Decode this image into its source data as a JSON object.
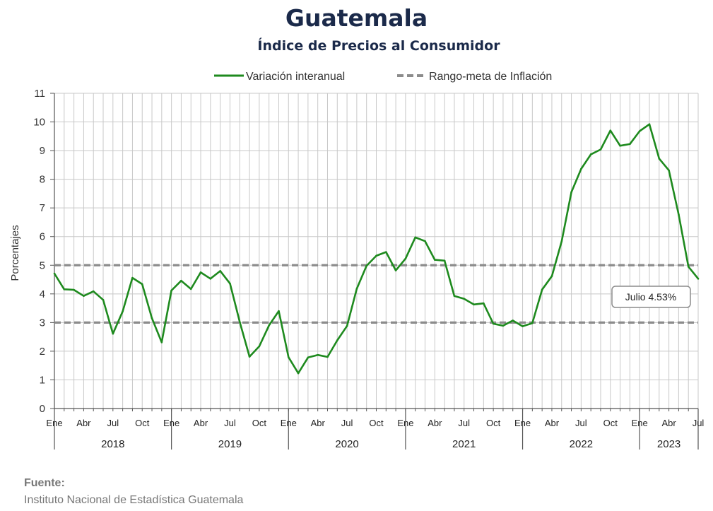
{
  "header": {
    "title": "Guatemala",
    "subtitle": "Índice de Precios al Consumidor"
  },
  "source": {
    "label": "Fuente:",
    "text": "Instituto Nacional de Estadística Guatemala"
  },
  "colors": {
    "series": "#1e8a1e",
    "target": "#8c8c8c",
    "grid": "#c8c8c8",
    "axis": "#555555"
  },
  "chart_data": {
    "type": "line",
    "title": "Guatemala",
    "subtitle": "Índice de Precios al Consumidor",
    "ylabel": "Porcentajes",
    "xlabel": "",
    "ylim": [
      0,
      11
    ],
    "yticks": [
      0,
      1,
      2,
      3,
      4,
      5,
      6,
      7,
      8,
      9,
      10,
      11
    ],
    "grid": true,
    "legend_position": "top",
    "x_start": "2018-01",
    "x_end": "2023-07",
    "month_tick_labels": [
      "Ene",
      "Abr",
      "Jul",
      "Oct"
    ],
    "years": [
      "2018",
      "2019",
      "2020",
      "2021",
      "2022",
      "2023"
    ],
    "series": [
      {
        "name": "Variación interanual",
        "style": "solid",
        "values": [
          4.71,
          4.16,
          4.14,
          3.93,
          4.09,
          3.79,
          2.61,
          3.39,
          4.56,
          4.34,
          3.15,
          2.31,
          4.12,
          4.46,
          4.17,
          4.75,
          4.53,
          4.8,
          4.36,
          3.02,
          1.81,
          2.17,
          2.9,
          3.4,
          1.79,
          1.23,
          1.78,
          1.87,
          1.8,
          2.38,
          2.88,
          4.18,
          4.98,
          5.33,
          5.46,
          4.82,
          5.23,
          5.97,
          5.84,
          5.19,
          5.16,
          3.93,
          3.83,
          3.63,
          3.67,
          2.96,
          2.89,
          3.07,
          2.87,
          2.98,
          4.15,
          4.62,
          5.83,
          7.55,
          8.36,
          8.87,
          9.04,
          9.7,
          9.17,
          9.23,
          9.68,
          9.92,
          8.72,
          8.31,
          6.77,
          4.95,
          4.53
        ]
      },
      {
        "name": "Rango-meta de Inflación",
        "style": "dashed",
        "values": [
          3,
          5
        ]
      }
    ],
    "annotation": "Julio 4.53%"
  }
}
